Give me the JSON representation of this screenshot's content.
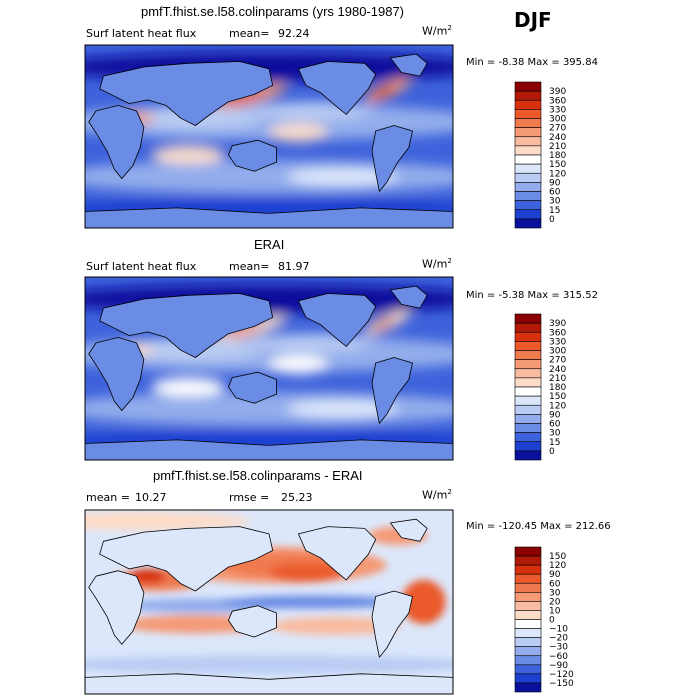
{
  "season": "DJF",
  "chart_data": [
    {
      "type": "heatmap",
      "title": "pmfT.fhist.se.l58.colinparams (yrs 1980-1987)",
      "field": "Surf latent heat flux",
      "stat1_label": "mean=",
      "stat1_value": "92.24",
      "stat2_label": "",
      "stat2_value": "",
      "units": "W/m",
      "units_sup": "2",
      "minmax": "Min =  -8.38 Max = 395.84",
      "min": -8.38,
      "max": 395.84,
      "levels": [
        "390",
        "360",
        "330",
        "300",
        "270",
        "240",
        "210",
        "180",
        "150",
        "120",
        "90",
        "60",
        "30",
        "15",
        "0"
      ],
      "colors": [
        "#8b0000",
        "#b01a06",
        "#d7300f",
        "#ea5a2a",
        "#f07a4f",
        "#f59a76",
        "#f9bca1",
        "#fcdcc8",
        "#ffffff",
        "#dce7fb",
        "#b9ccf3",
        "#93adec",
        "#6b8ce4",
        "#3e62db",
        "#1c40d0",
        "#08109c"
      ]
    },
    {
      "type": "heatmap",
      "title": "ERAI",
      "field": "Surf latent heat flux",
      "stat1_label": "mean=",
      "stat1_value": "81.97",
      "stat2_label": "",
      "stat2_value": "",
      "units": "W/m",
      "units_sup": "2",
      "minmax": "Min =  -5.38 Max = 315.52",
      "min": -5.38,
      "max": 315.52,
      "levels": [
        "390",
        "360",
        "330",
        "300",
        "270",
        "240",
        "210",
        "180",
        "150",
        "120",
        "90",
        "60",
        "30",
        "15",
        "0"
      ],
      "colors": [
        "#8b0000",
        "#b01a06",
        "#d7300f",
        "#ea5a2a",
        "#f07a4f",
        "#f59a76",
        "#f9bca1",
        "#fcdcc8",
        "#ffffff",
        "#dce7fb",
        "#b9ccf3",
        "#93adec",
        "#6b8ce4",
        "#3e62db",
        "#1c40d0",
        "#08109c"
      ]
    },
    {
      "type": "heatmap",
      "title": "pmfT.fhist.se.l58.colinparams - ERAI",
      "field": "",
      "stat1_label": "mean =",
      "stat1_value": "10.27",
      "stat2_label": "rmse =",
      "stat2_value": "25.23",
      "units": "W/m",
      "units_sup": "2",
      "minmax": "Min = -120.45 Max = 212.66",
      "min": -120.45,
      "max": 212.66,
      "levels": [
        "150",
        "120",
        "90",
        "60",
        "30",
        "20",
        "10",
        "0",
        "−10",
        "−20",
        "−30",
        "−60",
        "−90",
        "−120",
        "−150"
      ],
      "colors": [
        "#8b0000",
        "#b01a06",
        "#d7300f",
        "#ea5a2a",
        "#f07a4f",
        "#f59a76",
        "#f9bca1",
        "#fcdcc8",
        "#ffffff",
        "#dce7fb",
        "#b9ccf3",
        "#93adec",
        "#6b8ce4",
        "#3e62db",
        "#1c40d0",
        "#08109c"
      ]
    }
  ]
}
